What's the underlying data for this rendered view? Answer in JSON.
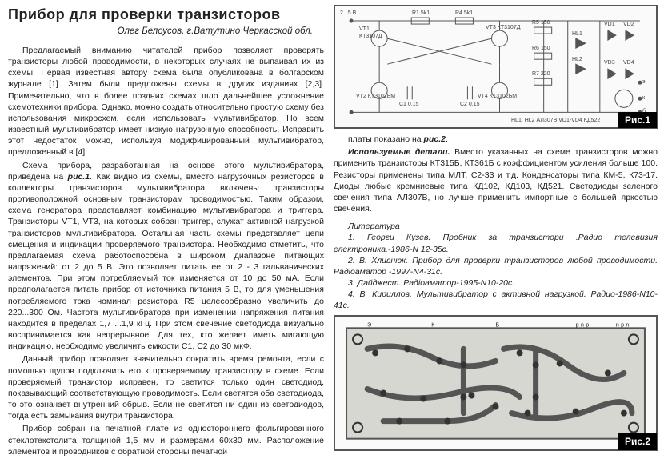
{
  "title": "Прибор для проверки транзисторов",
  "author": "Олег Белоусов,  г.Ватутино Черкасской обл.",
  "left_paragraphs": [
    "Предлагаемый вниманию читателей прибор позволяет проверять транзисторы любой проводимости, в некоторых случаях не выпаивая их из схемы. Первая известная автору схема была опубликована в болгарском журнале [1]. Затем были предложены схемы в других изданиях [2,3]. Примечательно, что в более поздних схемах шло дальнейшее усложнение схемотехники прибора. Однако, можно создать относительно простую схему без использования микросхем, если использовать мультивибратор. Но всем известный мультивибратор имеет низкую нагрузочную способность. Исправить этот недостаток можно, используя модифицированный мультивибратор, предложенный в [4].",
    "Схема прибора, разработанная на основе этого мультивибратора, приведена на <span class='em-ref'>рис.1</span>. Как видно из схемы, вместо нагрузочных резисторов в коллекторы транзисторов мультивибратора включены транзисторы противоположной основным транзисторам проводимостью. Таким образом, схема генератора представляет комбинацию мультивибратора и триггера. Транзисторы VT1, VT3, на которых собран триггер, служат активной нагрузкой транзисторов мультивибратора. Остальная часть схемы представляет цепи смещения и индикации проверяемого транзистора. Необходимо отметить, что предлагаемая схема работоспособна в широком диапазоне питающих напряжений: от 2 до 5 В. Это позволяет питать ее от 2 - 3 гальванических элементов. При этом потребляемый ток изменяется от 10 до 50 мА. Если предполагается питать прибор от источника питания 5 В, то для уменьшения потребляемого тока номинал резистора R5 целесообразно увеличить до 220...300 Ом. Частота мультивибратора при изменении напряжения питания находится в пределах 1,7 ...1,9 кГц. При этом свечение светодиода визуально воспринимается как непрерывное. Для тех, кто желает иметь мигающую индикацию, необходимо увеличить емкости С1, С2 до 30 мкФ.",
    "Данный прибор позволяет значительно сократить время ремонта, если с помощью щупов подключить его к проверяемому транзистору в схеме. Если проверяемый транзистор исправен, то светится только один светодиод, показывающий соответствующую проводимость. Если светятся оба светодиода, то это означает внутренний обрыв. Если не светится ни один из светодиодов, тогда есть замыкания внутри транзистора.",
    "Прибор собран на печатной плате из одностороннего фольгированного стеклотекстолита толщиной 1,5 мм и размерами 60x30 мм. Расположение элементов и проводников с обратной стороны печатной"
  ],
  "right_paragraphs_before_lit": [
    "платы показано на <span class='em-ref'>рис.2</span>.",
    "<span class='em-ref'>Используемые детали.</span> Вместо указанных на схеме транзисторов можно применить транзисторы КТ315Б, КТ361Б с коэффициентом усиления больше 100. Резисторы применены типа МЛТ, С2-33 и т.д. Конденсаторы типа КМ-5, К73-17. Диоды любые кремниевые типа КД102, КД103, КД521. Светодиоды зеленого свечения типа АЛ307В, но лучше применить импортные с большей яркостью свечения."
  ],
  "lit_header": "Литература",
  "literature": [
    "1. Георги Кузев. Пробник за транзистори .Радио телевизия електроника.-1986-N 12-35с.",
    "2. В. Хливнюк. Прибор для проверки транзисторов любой проводимости. Радіоаматор -1997-N4-31с.",
    "3. Дайджест. Радіоаматор-1995-N10-20с.",
    "4. В. Кириллов. Мультивибратор с активной нагрузкой. Радио-1986-N10-41с."
  ],
  "fig1": {
    "label": "Рис.1",
    "components": {
      "supply": "2...5 В",
      "VT1": "КТ3107Д",
      "VT3": "КТ3107Д",
      "VT2": "КТ3102БМ",
      "VT4": "КТ3102БМ",
      "R1": "5k1",
      "R4": "5k1",
      "R2": "5k1",
      "R3": "5k1",
      "R5": "150",
      "R6": "150",
      "R7": "220",
      "C1": "0,15",
      "C2": "0,15",
      "HL1": "HL1",
      "HL2": "HL2",
      "VD1": "VD1",
      "VD2": "VD2",
      "VD3": "VD3",
      "VD4": "VD4",
      "notes": "HL1, HL2 АЛ307В   VD1-VD4 КД522",
      "terminals": [
        "э",
        "к",
        "б"
      ]
    },
    "colors": {
      "stroke": "#444",
      "bg": "#fafafa"
    }
  },
  "fig2": {
    "label": "Рис.2",
    "colors": {
      "pad": "#333",
      "trace": "#555",
      "board_bg": "#d7d7d2"
    },
    "terminals": [
      "Э",
      "К",
      "Б",
      "p-n-p",
      "n-p-n"
    ]
  }
}
